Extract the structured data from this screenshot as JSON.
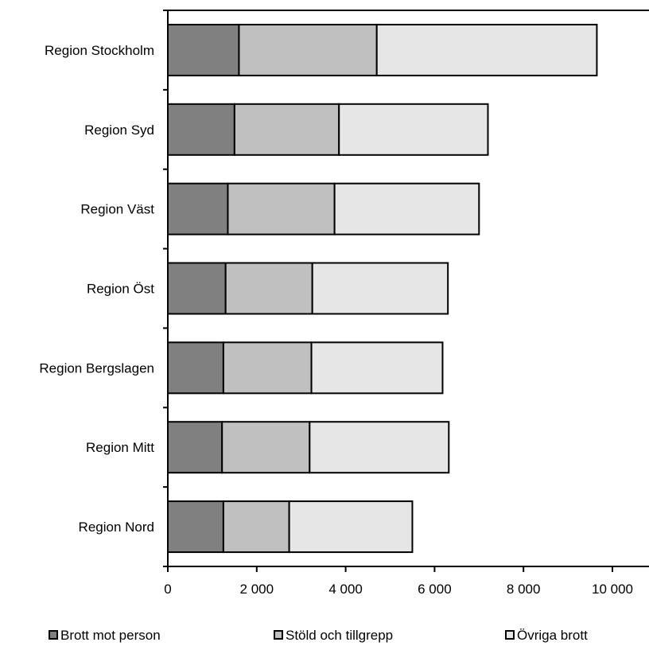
{
  "chart_data": {
    "type": "bar",
    "orientation": "horizontal",
    "stacked": true,
    "categories": [
      "Region Stockholm",
      "Region Syd",
      "Region Väst",
      "Region Öst",
      "Region Bergslagen",
      "Region Mitt",
      "Region Nord"
    ],
    "series": [
      {
        "name": "Brott mot person",
        "color": "#808080",
        "values": [
          1600,
          1500,
          1350,
          1300,
          1250,
          1220,
          1250
        ]
      },
      {
        "name": "Stöld och tillgrepp",
        "color": "#c0c0c0",
        "values": [
          3100,
          2350,
          2400,
          1950,
          1980,
          1970,
          1480
        ]
      },
      {
        "name": "Övriga brott",
        "color": "#e6e6e6",
        "values": [
          4950,
          3350,
          3250,
          3050,
          2950,
          3130,
          2770
        ]
      }
    ],
    "xlim": [
      0,
      10000
    ],
    "xticks": [
      0,
      2000,
      4000,
      6000,
      8000,
      10000
    ],
    "xtick_labels": [
      "0",
      "2 000",
      "4 000",
      "6 000",
      "8 000",
      "10 000"
    ],
    "grid": false,
    "legend_position": "bottom"
  }
}
